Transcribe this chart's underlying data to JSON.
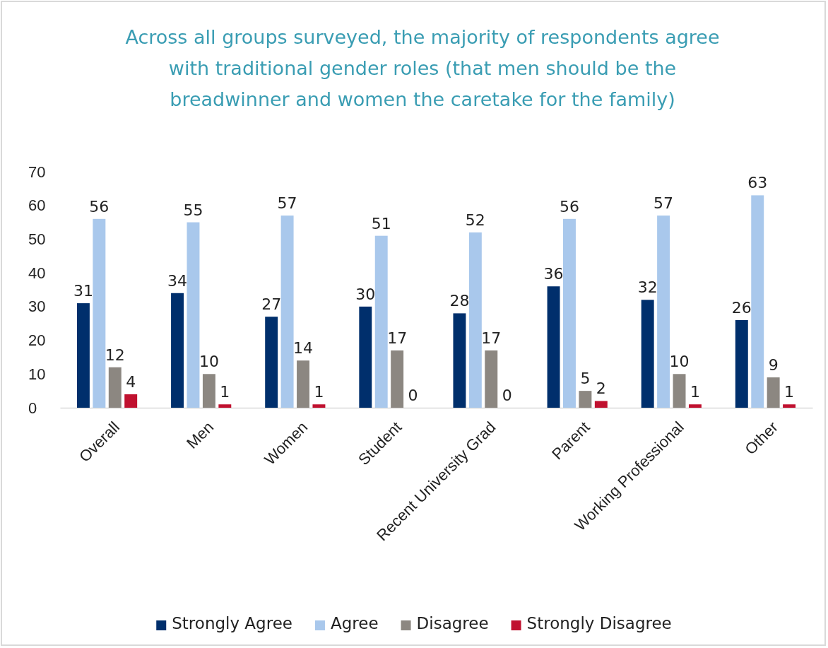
{
  "chart_data": {
    "type": "bar",
    "title": "Across all groups surveyed, the majority of respondents agree with traditional gender roles (that men should be the breadwinner and women the caretake for the family)",
    "categories": [
      "Overall",
      "Men",
      "Women",
      "Student",
      "Recent University Grad",
      "Parent",
      "Working Professional",
      "Other"
    ],
    "series": [
      {
        "name": "Strongly Agree",
        "color": "#002f6c",
        "values": [
          31,
          34,
          27,
          30,
          28,
          36,
          32,
          26
        ]
      },
      {
        "name": "Agree",
        "color": "#a9c8ec",
        "values": [
          56,
          55,
          57,
          51,
          52,
          56,
          57,
          63
        ]
      },
      {
        "name": "Disagree",
        "color": "#8c8781",
        "values": [
          12,
          10,
          14,
          17,
          17,
          5,
          10,
          9
        ]
      },
      {
        "name": "Strongly Disagree",
        "color": "#c0112f",
        "values": [
          4,
          1,
          1,
          0,
          0,
          2,
          1,
          1
        ]
      }
    ],
    "ylim": [
      0,
      70
    ],
    "yticks": [
      0,
      10,
      20,
      30,
      40,
      50,
      60,
      70
    ],
    "grid": false,
    "legend": "bottom",
    "data_labels": true
  }
}
